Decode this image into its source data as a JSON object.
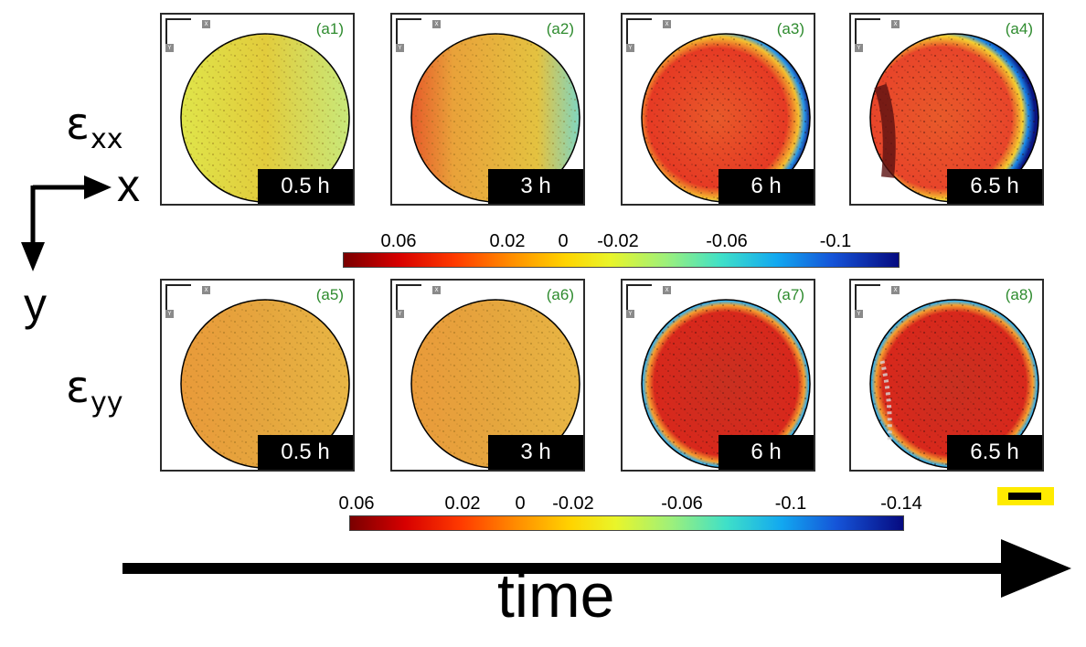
{
  "rows": [
    {
      "label": "ε",
      "subscript": "xx",
      "panels": [
        {
          "id": "(a1)",
          "time": "0.5 h",
          "field": "mild"
        },
        {
          "id": "(a2)",
          "time": "3 h",
          "field": "mild"
        },
        {
          "id": "(a3)",
          "time": "6 h",
          "field": "strong"
        },
        {
          "id": "(a4)",
          "time": "6.5 h",
          "field": "strong"
        }
      ],
      "colorbar": {
        "ticks": [
          "0.06",
          "0.02",
          "0",
          "-0.02",
          "-0.06",
          "-0.1"
        ]
      }
    },
    {
      "label": "ε",
      "subscript": "yy",
      "panels": [
        {
          "id": "(a5)",
          "time": "0.5 h",
          "field": "mild"
        },
        {
          "id": "(a6)",
          "time": "3 h",
          "field": "mild"
        },
        {
          "id": "(a7)",
          "time": "6 h",
          "field": "strong"
        },
        {
          "id": "(a8)",
          "time": "6.5 h",
          "field": "strong"
        }
      ],
      "colorbar": {
        "ticks": [
          "0.06",
          "0.02",
          "0",
          "-0.02",
          "-0.06",
          "-0.1",
          "-0.14"
        ]
      }
    }
  ],
  "axes": {
    "x": "x",
    "y": "y"
  },
  "panel_axis_tags": {
    "x": "X",
    "y": "Y"
  },
  "time_label": "time",
  "colors": {
    "panel_label": "#2e8b2e",
    "scale_bar": "#ffeb00"
  }
}
